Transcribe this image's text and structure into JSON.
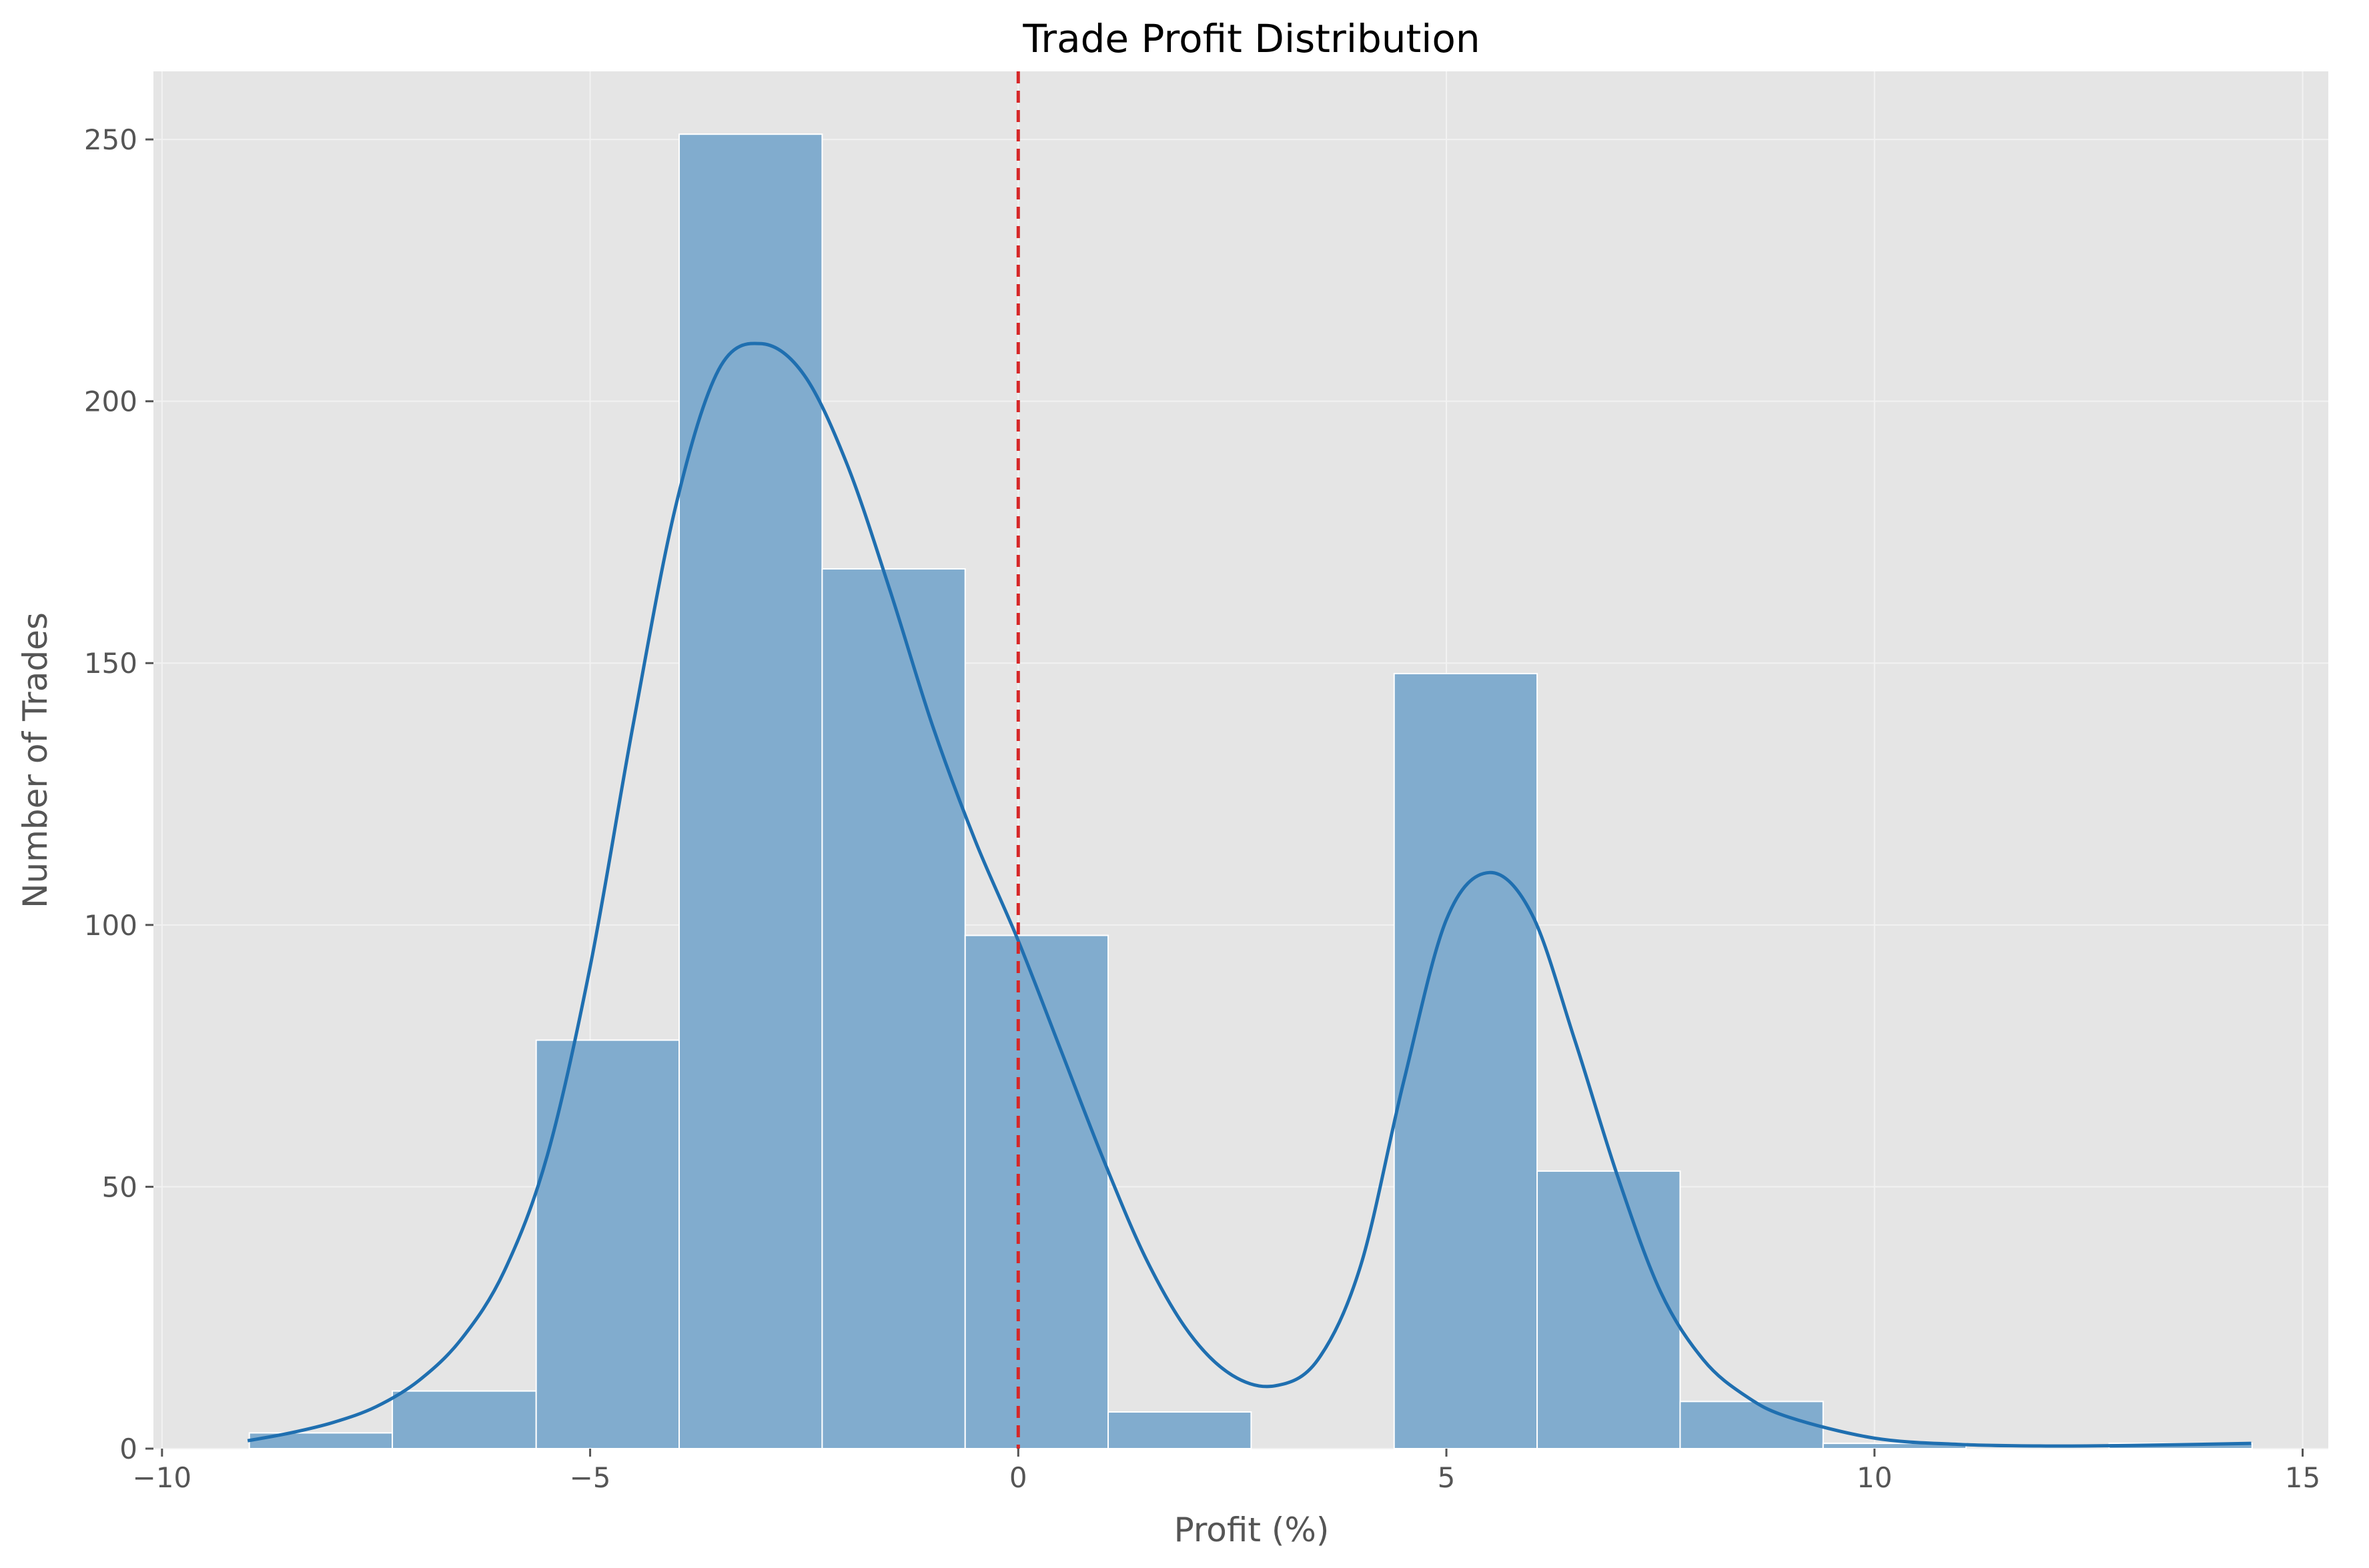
{
  "chart_data": {
    "type": "bar",
    "title": "Trade Profit Distribution",
    "xlabel": "Profit (%)",
    "ylabel": "Number of Trades",
    "xlim": [
      -10.1,
      15.3
    ],
    "ylim": [
      0,
      263
    ],
    "xticks": [
      -10,
      -5,
      0,
      5,
      10,
      15
    ],
    "xtick_labels": [
      "−10",
      "−5",
      "0",
      "5",
      "10",
      "15"
    ],
    "yticks": [
      0,
      50,
      100,
      150,
      200,
      250
    ],
    "ytick_labels": [
      "0",
      "50",
      "100",
      "150",
      "200",
      "250"
    ],
    "grid": true,
    "legend": "none",
    "bins": [
      {
        "x0": -8.98,
        "x1": -7.31,
        "count": 3
      },
      {
        "x0": -7.31,
        "x1": -5.63,
        "count": 11
      },
      {
        "x0": -5.63,
        "x1": -3.96,
        "count": 78
      },
      {
        "x0": -3.96,
        "x1": -2.29,
        "count": 251
      },
      {
        "x0": -2.29,
        "x1": -0.62,
        "count": 168
      },
      {
        "x0": -0.62,
        "x1": 1.05,
        "count": 98
      },
      {
        "x0": 1.05,
        "x1": 2.72,
        "count": 7
      },
      {
        "x0": 2.72,
        "x1": 4.39,
        "count": 0
      },
      {
        "x0": 4.39,
        "x1": 6.06,
        "count": 148
      },
      {
        "x0": 6.06,
        "x1": 7.73,
        "count": 53
      },
      {
        "x0": 7.73,
        "x1": 9.4,
        "count": 9
      },
      {
        "x0": 9.4,
        "x1": 11.07,
        "count": 1
      },
      {
        "x0": 11.07,
        "x1": 12.74,
        "count": 0
      },
      {
        "x0": 12.74,
        "x1": 14.41,
        "count": 1
      }
    ],
    "kde": {
      "x": [
        -9.0,
        -8.5,
        -8.0,
        -7.5,
        -7.0,
        -6.5,
        -6.0,
        -5.5,
        -5.0,
        -4.5,
        -4.0,
        -3.5,
        -3.0,
        -2.5,
        -2.0,
        -1.5,
        -1.0,
        -0.5,
        0.0,
        0.5,
        1.0,
        1.5,
        2.0,
        2.5,
        3.0,
        3.5,
        4.0,
        4.5,
        5.0,
        5.5,
        6.0,
        6.5,
        7.0,
        7.5,
        8.0,
        8.5,
        9.0,
        10.0,
        11.0,
        12.0,
        13.0,
        14.4
      ],
      "y": [
        1.5,
        3,
        5,
        8,
        13,
        21,
        34,
        56,
        92,
        138,
        180,
        206,
        211,
        205,
        188,
        164,
        138,
        116,
        97,
        76,
        55,
        36,
        22,
        14,
        12,
        17,
        35,
        70,
        101,
        110,
        102,
        78,
        52,
        30,
        17,
        10,
        6,
        2,
        0.8,
        0.5,
        0.6,
        1
      ]
    },
    "reference_line": {
      "x": 0,
      "color": "#d62728",
      "style": "dashed"
    },
    "colors": {
      "bar_fill": "#81acce",
      "bar_edge": "#ffffff",
      "kde_line": "#1f6fb0",
      "plot_background": "#e5e5e5",
      "grid": "#f2f2f2"
    }
  }
}
